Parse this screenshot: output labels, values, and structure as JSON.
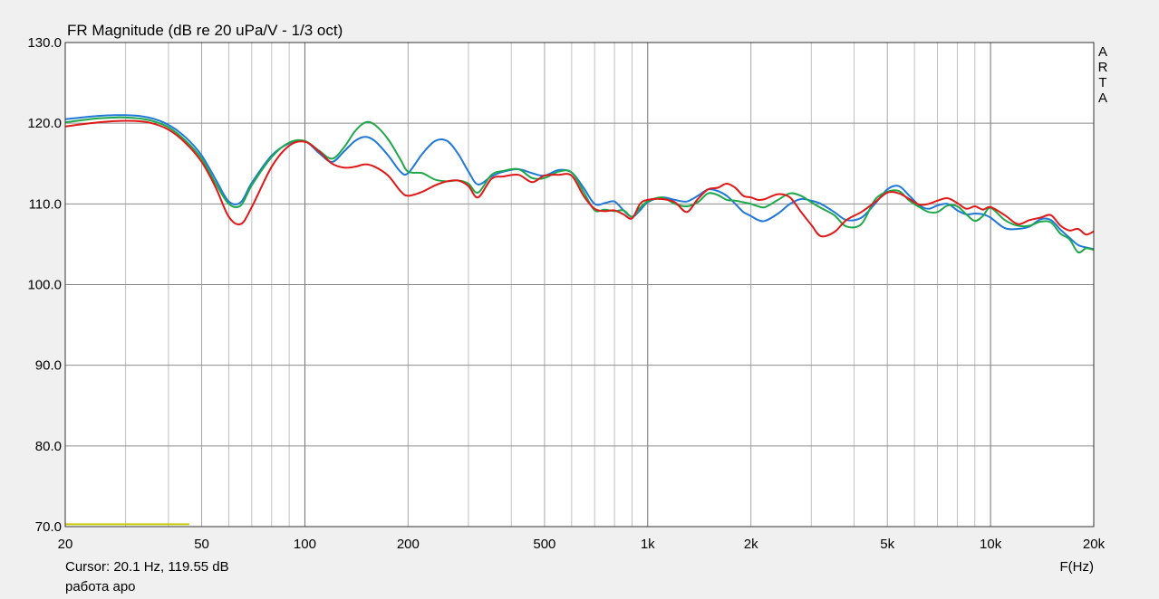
{
  "chart_data": {
    "type": "line",
    "title": "FR Magnitude (dB re 20 uPa/V - 1/3 oct)",
    "xlabel": "F(Hz)",
    "ylabel": "",
    "x_scale": "log",
    "xlim": [
      20,
      20000
    ],
    "ylim": [
      70,
      130
    ],
    "grid": true,
    "x_ticks": [
      {
        "value": 20,
        "label": "20"
      },
      {
        "value": 50,
        "label": "50"
      },
      {
        "value": 100,
        "label": "100"
      },
      {
        "value": 200,
        "label": "200"
      },
      {
        "value": 500,
        "label": "500"
      },
      {
        "value": 1000,
        "label": "1k"
      },
      {
        "value": 2000,
        "label": "2k"
      },
      {
        "value": 5000,
        "label": "5k"
      },
      {
        "value": 10000,
        "label": "10k"
      },
      {
        "value": 20000,
        "label": "20k"
      }
    ],
    "y_ticks": [
      {
        "value": 70,
        "label": "70.0"
      },
      {
        "value": 80,
        "label": "80.0"
      },
      {
        "value": 90,
        "label": "90.0"
      },
      {
        "value": 100,
        "label": "100.0"
      },
      {
        "value": 110,
        "label": "110.0"
      },
      {
        "value": 120,
        "label": "120.0"
      },
      {
        "value": 130,
        "label": "130.0"
      }
    ],
    "series": [
      {
        "color": "#1f78d8",
        "points": [
          [
            20,
            120.5
          ],
          [
            25,
            120.9
          ],
          [
            30,
            121
          ],
          [
            35,
            120.7
          ],
          [
            40,
            119.8
          ],
          [
            45,
            118.2
          ],
          [
            50,
            116
          ],
          [
            55,
            113
          ],
          [
            60,
            110.3
          ],
          [
            65,
            110.2
          ],
          [
            70,
            112.6
          ],
          [
            80,
            116
          ],
          [
            90,
            117.5
          ],
          [
            100,
            117.8
          ],
          [
            110,
            116.3
          ],
          [
            120,
            115.2
          ],
          [
            130,
            116.5
          ],
          [
            140,
            117.8
          ],
          [
            150,
            118.3
          ],
          [
            160,
            117.8
          ],
          [
            175,
            116
          ],
          [
            190,
            114
          ],
          [
            200,
            113.8
          ],
          [
            220,
            116.2
          ],
          [
            240,
            117.8
          ],
          [
            260,
            117.8
          ],
          [
            280,
            116.2
          ],
          [
            300,
            114
          ],
          [
            320,
            112.4
          ],
          [
            350,
            113.4
          ],
          [
            380,
            114
          ],
          [
            420,
            114.3
          ],
          [
            460,
            113.8
          ],
          [
            500,
            113.5
          ],
          [
            550,
            114.2
          ],
          [
            600,
            113.9
          ],
          [
            650,
            112
          ],
          [
            700,
            110
          ],
          [
            750,
            110.1
          ],
          [
            800,
            110.3
          ],
          [
            850,
            109.2
          ],
          [
            900,
            108.4
          ],
          [
            950,
            109.2
          ],
          [
            1000,
            110.2
          ],
          [
            1100,
            110.8
          ],
          [
            1200,
            110.5
          ],
          [
            1300,
            110.3
          ],
          [
            1400,
            111
          ],
          [
            1500,
            111.8
          ],
          [
            1600,
            111.6
          ],
          [
            1700,
            111
          ],
          [
            1800,
            110
          ],
          [
            1900,
            109
          ],
          [
            2000,
            108.5
          ],
          [
            2100,
            108
          ],
          [
            2200,
            107.9
          ],
          [
            2400,
            108.8
          ],
          [
            2600,
            110
          ],
          [
            2800,
            110.6
          ],
          [
            3000,
            110.4
          ],
          [
            3200,
            110
          ],
          [
            3500,
            109
          ],
          [
            3800,
            108
          ],
          [
            4200,
            108.3
          ],
          [
            4600,
            110
          ],
          [
            5000,
            111.8
          ],
          [
            5400,
            112.2
          ],
          [
            5800,
            111
          ],
          [
            6200,
            109.8
          ],
          [
            6600,
            109.4
          ],
          [
            7000,
            109.8
          ],
          [
            7500,
            110
          ],
          [
            8000,
            109.2
          ],
          [
            8500,
            108.7
          ],
          [
            9000,
            108.8
          ],
          [
            9500,
            108.7
          ],
          [
            10000,
            108.3
          ],
          [
            11000,
            107
          ],
          [
            12000,
            106.9
          ],
          [
            13000,
            107.2
          ],
          [
            14000,
            108.1
          ],
          [
            15000,
            108
          ],
          [
            16000,
            106.8
          ],
          [
            17000,
            105.8
          ],
          [
            18000,
            104.9
          ],
          [
            19000,
            104.6
          ],
          [
            20000,
            104.4
          ]
        ]
      },
      {
        "color": "#1fa84a",
        "points": [
          [
            20,
            120.1
          ],
          [
            25,
            120.6
          ],
          [
            30,
            120.7
          ],
          [
            35,
            120.4
          ],
          [
            40,
            119.5
          ],
          [
            45,
            117.8
          ],
          [
            50,
            115.6
          ],
          [
            55,
            112.5
          ],
          [
            60,
            110
          ],
          [
            65,
            109.8
          ],
          [
            70,
            112.3
          ],
          [
            80,
            115.8
          ],
          [
            90,
            117.6
          ],
          [
            100,
            117.8
          ],
          [
            110,
            116.6
          ],
          [
            120,
            115.6
          ],
          [
            130,
            117
          ],
          [
            140,
            119
          ],
          [
            150,
            120.1
          ],
          [
            160,
            119.8
          ],
          [
            175,
            118
          ],
          [
            190,
            115.5
          ],
          [
            200,
            114
          ],
          [
            220,
            113.8
          ],
          [
            240,
            113
          ],
          [
            260,
            112.8
          ],
          [
            280,
            112.9
          ],
          [
            300,
            112.5
          ],
          [
            320,
            111.4
          ],
          [
            350,
            113.6
          ],
          [
            380,
            114.1
          ],
          [
            420,
            114.3
          ],
          [
            460,
            113.2
          ],
          [
            500,
            113.2
          ],
          [
            550,
            114
          ],
          [
            600,
            113.9
          ],
          [
            650,
            111.5
          ],
          [
            700,
            109.2
          ],
          [
            750,
            109.3
          ],
          [
            800,
            109.1
          ],
          [
            850,
            109.2
          ],
          [
            900,
            108.4
          ],
          [
            950,
            109.5
          ],
          [
            1000,
            110.3
          ],
          [
            1100,
            110.8
          ],
          [
            1200,
            110
          ],
          [
            1300,
            109.7
          ],
          [
            1400,
            110.2
          ],
          [
            1500,
            111.3
          ],
          [
            1600,
            111.1
          ],
          [
            1700,
            110.5
          ],
          [
            1800,
            110.4
          ],
          [
            1900,
            110.2
          ],
          [
            2000,
            110
          ],
          [
            2100,
            109.7
          ],
          [
            2200,
            109.6
          ],
          [
            2400,
            110.5
          ],
          [
            2600,
            111.3
          ],
          [
            2800,
            111
          ],
          [
            3000,
            110.2
          ],
          [
            3200,
            109.5
          ],
          [
            3500,
            108.6
          ],
          [
            3800,
            107.2
          ],
          [
            4200,
            107.5
          ],
          [
            4600,
            110.5
          ],
          [
            5000,
            111.5
          ],
          [
            5400,
            111.6
          ],
          [
            5800,
            110.4
          ],
          [
            6200,
            109.6
          ],
          [
            6600,
            109
          ],
          [
            7000,
            109
          ],
          [
            7500,
            109.8
          ],
          [
            8000,
            109.7
          ],
          [
            8500,
            108.7
          ],
          [
            9000,
            107.9
          ],
          [
            9500,
            108.5
          ],
          [
            10000,
            109.5
          ],
          [
            11000,
            108
          ],
          [
            12000,
            107.3
          ],
          [
            13000,
            107.3
          ],
          [
            14000,
            107.8
          ],
          [
            15000,
            107.7
          ],
          [
            16000,
            106.3
          ],
          [
            17000,
            105.6
          ],
          [
            18000,
            104
          ],
          [
            19000,
            104.5
          ],
          [
            20000,
            104.3
          ]
        ]
      },
      {
        "color": "#e01818",
        "points": [
          [
            20,
            119.6
          ],
          [
            25,
            120.1
          ],
          [
            30,
            120.3
          ],
          [
            35,
            120.1
          ],
          [
            40,
            119.2
          ],
          [
            45,
            117.5
          ],
          [
            50,
            115.2
          ],
          [
            55,
            112
          ],
          [
            60,
            108.4
          ],
          [
            65,
            107.5
          ],
          [
            70,
            109.6
          ],
          [
            80,
            114.6
          ],
          [
            90,
            117.2
          ],
          [
            100,
            117.7
          ],
          [
            110,
            116.5
          ],
          [
            120,
            115
          ],
          [
            130,
            114.5
          ],
          [
            140,
            114.6
          ],
          [
            150,
            114.9
          ],
          [
            160,
            114.6
          ],
          [
            175,
            113.5
          ],
          [
            190,
            111.6
          ],
          [
            200,
            111
          ],
          [
            220,
            111.5
          ],
          [
            240,
            112.3
          ],
          [
            260,
            112.8
          ],
          [
            280,
            112.9
          ],
          [
            300,
            112.2
          ],
          [
            320,
            110.8
          ],
          [
            350,
            113.1
          ],
          [
            380,
            113.4
          ],
          [
            420,
            113.6
          ],
          [
            460,
            112.7
          ],
          [
            500,
            113.5
          ],
          [
            550,
            113.6
          ],
          [
            600,
            113.5
          ],
          [
            650,
            111
          ],
          [
            700,
            109.4
          ],
          [
            750,
            109.1
          ],
          [
            800,
            109.2
          ],
          [
            850,
            108.7
          ],
          [
            900,
            108.2
          ],
          [
            950,
            110
          ],
          [
            1000,
            110.5
          ],
          [
            1100,
            110.6
          ],
          [
            1200,
            110.2
          ],
          [
            1300,
            109
          ],
          [
            1400,
            110.6
          ],
          [
            1500,
            111.8
          ],
          [
            1600,
            112
          ],
          [
            1700,
            112.5
          ],
          [
            1800,
            112
          ],
          [
            1900,
            111
          ],
          [
            2000,
            110.8
          ],
          [
            2100,
            110.5
          ],
          [
            2200,
            110.6
          ],
          [
            2400,
            111.2
          ],
          [
            2600,
            110.8
          ],
          [
            2800,
            109
          ],
          [
            3000,
            107.4
          ],
          [
            3200,
            106
          ],
          [
            3500,
            106.5
          ],
          [
            3800,
            108
          ],
          [
            4200,
            109
          ],
          [
            4600,
            110.2
          ],
          [
            5000,
            111.4
          ],
          [
            5400,
            111.3
          ],
          [
            5800,
            110.6
          ],
          [
            6200,
            109.9
          ],
          [
            6600,
            110
          ],
          [
            7000,
            110.4
          ],
          [
            7500,
            110.7
          ],
          [
            8000,
            110.1
          ],
          [
            8500,
            109.4
          ],
          [
            9000,
            109.7
          ],
          [
            9500,
            109.3
          ],
          [
            10000,
            109.6
          ],
          [
            11000,
            108.6
          ],
          [
            12000,
            107.5
          ],
          [
            13000,
            108
          ],
          [
            14000,
            108.3
          ],
          [
            15000,
            108.6
          ],
          [
            16000,
            107.3
          ],
          [
            17000,
            106.7
          ],
          [
            18000,
            106.9
          ],
          [
            19000,
            106.2
          ],
          [
            20000,
            106.6
          ]
        ]
      }
    ],
    "marker": {
      "color": "#c8c800",
      "x_start": 20,
      "x_end": 46,
      "y": 70.3
    }
  },
  "brand": [
    "A",
    "R",
    "T",
    "A"
  ],
  "cursor_text": "Cursor: 20.1 Hz, 119.55 dB",
  "caption": "работа аро"
}
